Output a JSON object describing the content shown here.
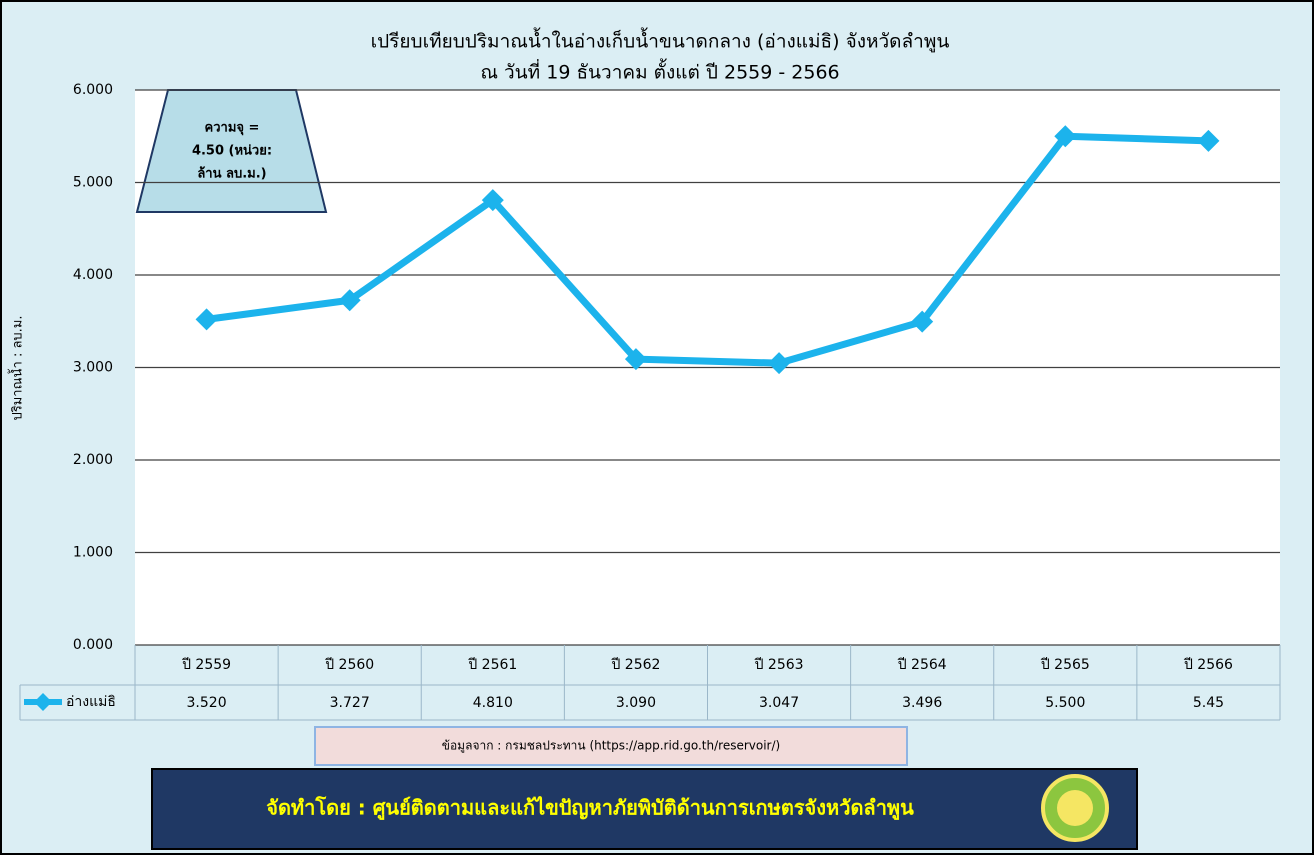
{
  "chart_data": {
    "type": "line",
    "title": [
      "เปรียบเทียบปริมาณน้ำในอ่างเก็บน้ำขนาดกลาง (อ่างแม่ธิ) จังหวัดลำพูน",
      "ณ วันที่ 19 ธันวาคม ตั้งแต่ ปี 2559 - 2566"
    ],
    "y_label": "ปริมาณน้ำ : ลบ.ม.",
    "categories": [
      "ปี 2559",
      "ปี 2560",
      "ปี 2561",
      "ปี 2562",
      "ปี 2563",
      "ปี 2564",
      "ปี 2565",
      "ปี 2566"
    ],
    "series": [
      {
        "name": "อ่างแม่ธิ",
        "color": "#1cb3ec",
        "values": [
          3.52,
          3.727,
          4.81,
          3.09,
          3.047,
          3.496,
          5.5,
          5.45
        ],
        "value_labels": [
          "3.520",
          "3.727",
          "4.810",
          "3.090",
          "3.047",
          "3.496",
          "5.500",
          "5.45"
        ]
      }
    ],
    "ylim": [
      0,
      6
    ],
    "yticks": [
      {
        "value": 0,
        "label": "0.000"
      },
      {
        "value": 1,
        "label": "1.000"
      },
      {
        "value": 2,
        "label": "2.000"
      },
      {
        "value": 3,
        "label": "3.000"
      },
      {
        "value": 4,
        "label": "4.000"
      },
      {
        "value": 5,
        "label": "5.000"
      },
      {
        "value": 6,
        "label": "6.000"
      }
    ],
    "grid": true,
    "annotation": [
      "ความจุ =",
      "4.50 (หน่วย:",
      "ล้าน ลบ.ม.)"
    ],
    "source": "ข้อมูลจาก : กรมชลประทาน (https://app.rid.go.th/reservoir/)",
    "credit": "จัดทำโดย : ศูนย์ติดตามและแก้ไขปัญหาภัยพิบัติด้านการเกษตรจังหวัดลำพูน"
  }
}
